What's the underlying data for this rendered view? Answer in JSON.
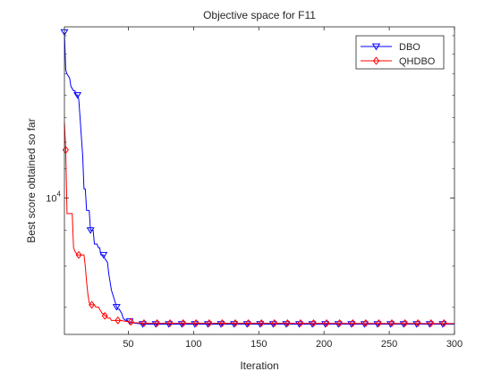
{
  "chart_data": {
    "type": "line",
    "title": "Objective space for F11",
    "xlabel": "Iteration",
    "ylabel": "Best score obtained so far",
    "xlim": [
      1,
      300
    ],
    "ylim": [
      6400,
      17500
    ],
    "yscale": "log",
    "xticks": [
      50,
      100,
      150,
      200,
      250,
      300
    ],
    "yticks": [
      10000
    ],
    "yticklabel_base": "10",
    "yticklabel_exp": "4",
    "grid": false,
    "legend_position": "top-right",
    "series": [
      {
        "name": "DBO",
        "color": "#0000ff",
        "marker": "triangle-down",
        "x": [
          1,
          2,
          3,
          4,
          5,
          6,
          7,
          8,
          9,
          10,
          11,
          12,
          13,
          14,
          15,
          16,
          17,
          18,
          19,
          20,
          21,
          22,
          23,
          24,
          25,
          26,
          27,
          28,
          29,
          30,
          31,
          32,
          33,
          34,
          35,
          36,
          37,
          38,
          39,
          40,
          41,
          42,
          43,
          44,
          45,
          46,
          47,
          48,
          49,
          50,
          52,
          55,
          58,
          60,
          300
        ],
        "values": [
          17200,
          15200,
          15000,
          14900,
          14800,
          14400,
          14300,
          14200,
          14200,
          14000,
          14000,
          13800,
          13000,
          12200,
          11500,
          10300,
          10300,
          9600,
          9600,
          9600,
          9000,
          9000,
          9000,
          8600,
          8600,
          8600,
          8500,
          8500,
          8300,
          8300,
          8300,
          8200,
          8150,
          8100,
          7800,
          7600,
          7400,
          7300,
          7200,
          7100,
          7000,
          6950,
          6950,
          6900,
          6850,
          6750,
          6720,
          6700,
          6690,
          6680,
          6650,
          6640,
          6630,
          6620,
          6620
        ]
      },
      {
        "name": "QHDBO",
        "color": "#ff0000",
        "marker": "diamond",
        "x": [
          1,
          2,
          3,
          4,
          5,
          6,
          7,
          8,
          9,
          10,
          11,
          12,
          13,
          14,
          15,
          16,
          17,
          18,
          19,
          20,
          21,
          22,
          23,
          24,
          25,
          26,
          27,
          28,
          29,
          30,
          31,
          32,
          33,
          34,
          35,
          36,
          37,
          38,
          39,
          40,
          42,
          44,
          46,
          48,
          50,
          55,
          60,
          300
        ],
        "values": [
          12800,
          11700,
          9500,
          9500,
          9500,
          9500,
          9500,
          8500,
          8400,
          8350,
          8300,
          8300,
          8300,
          8300,
          8300,
          8300,
          8000,
          7600,
          7300,
          7100,
          7050,
          7050,
          7050,
          7050,
          7000,
          7000,
          7000,
          6950,
          6900,
          6850,
          6850,
          6800,
          6800,
          6750,
          6750,
          6750,
          6700,
          6700,
          6700,
          6700,
          6700,
          6700,
          6690,
          6680,
          6670,
          6650,
          6640,
          6630
        ]
      }
    ]
  }
}
